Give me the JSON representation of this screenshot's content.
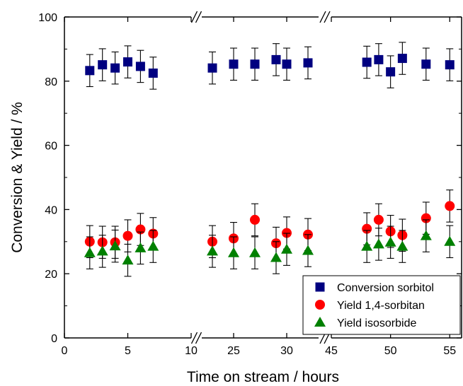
{
  "chart_data": {
    "type": "scatter",
    "xlabel": "Time on stream / hours",
    "ylabel": "Conversion & Yield / %",
    "ylim": [
      0,
      100
    ],
    "y_ticks": [
      0,
      20,
      40,
      60,
      80,
      100
    ],
    "x_axis_break": true,
    "x_segments": [
      {
        "range": [
          0,
          10
        ],
        "ticks": [
          0,
          5,
          10
        ]
      },
      {
        "range": [
          22,
          33
        ],
        "ticks": [
          25,
          30
        ]
      },
      {
        "range": [
          45,
          56
        ],
        "ticks": [
          45,
          50,
          55
        ]
      }
    ],
    "x_tick_labels": [
      "0",
      "5",
      "10",
      "25",
      "30",
      "45",
      "50",
      "55"
    ],
    "legend": {
      "position": "bottom-right"
    },
    "series": [
      {
        "name": "Conversion sorbitol",
        "marker": "square",
        "color": "#000080",
        "x": [
          2,
          3,
          4,
          5,
          6,
          7,
          23,
          25,
          27,
          29,
          30,
          32,
          48,
          49,
          50,
          51,
          53,
          55
        ],
        "y": [
          83.3,
          85.1,
          84.1,
          86.0,
          84.6,
          82.5,
          84.1,
          85.3,
          85.3,
          86.7,
          85.3,
          85.7,
          85.9,
          86.7,
          82.9,
          87.1,
          85.3,
          85.1
        ],
        "error": 5
      },
      {
        "name": "Yield 1,4-sorbitan",
        "marker": "circle",
        "color": "#ff0000",
        "x": [
          2,
          3,
          4,
          5,
          6,
          7,
          23,
          25,
          27,
          29,
          30,
          32,
          48,
          49,
          50,
          51,
          53,
          55
        ],
        "y": [
          30.0,
          29.8,
          29.8,
          31.8,
          33.8,
          32.5,
          30.0,
          31.0,
          36.8,
          29.5,
          32.7,
          32.2,
          34.0,
          36.8,
          33.2,
          32.0,
          37.3,
          41.1
        ],
        "error": 5
      },
      {
        "name": "Yield isosorbide",
        "marker": "triangle",
        "color": "#008000",
        "x": [
          2,
          3,
          4,
          5,
          6,
          7,
          23,
          25,
          27,
          29,
          30,
          32,
          48,
          49,
          50,
          51,
          53,
          55
        ],
        "y": [
          26.5,
          27.0,
          28.6,
          24.2,
          28.0,
          28.5,
          27.0,
          26.5,
          26.5,
          25.0,
          27.6,
          27.2,
          28.5,
          29.2,
          29.8,
          28.5,
          31.8,
          30.0
        ],
        "error": 5
      }
    ]
  }
}
